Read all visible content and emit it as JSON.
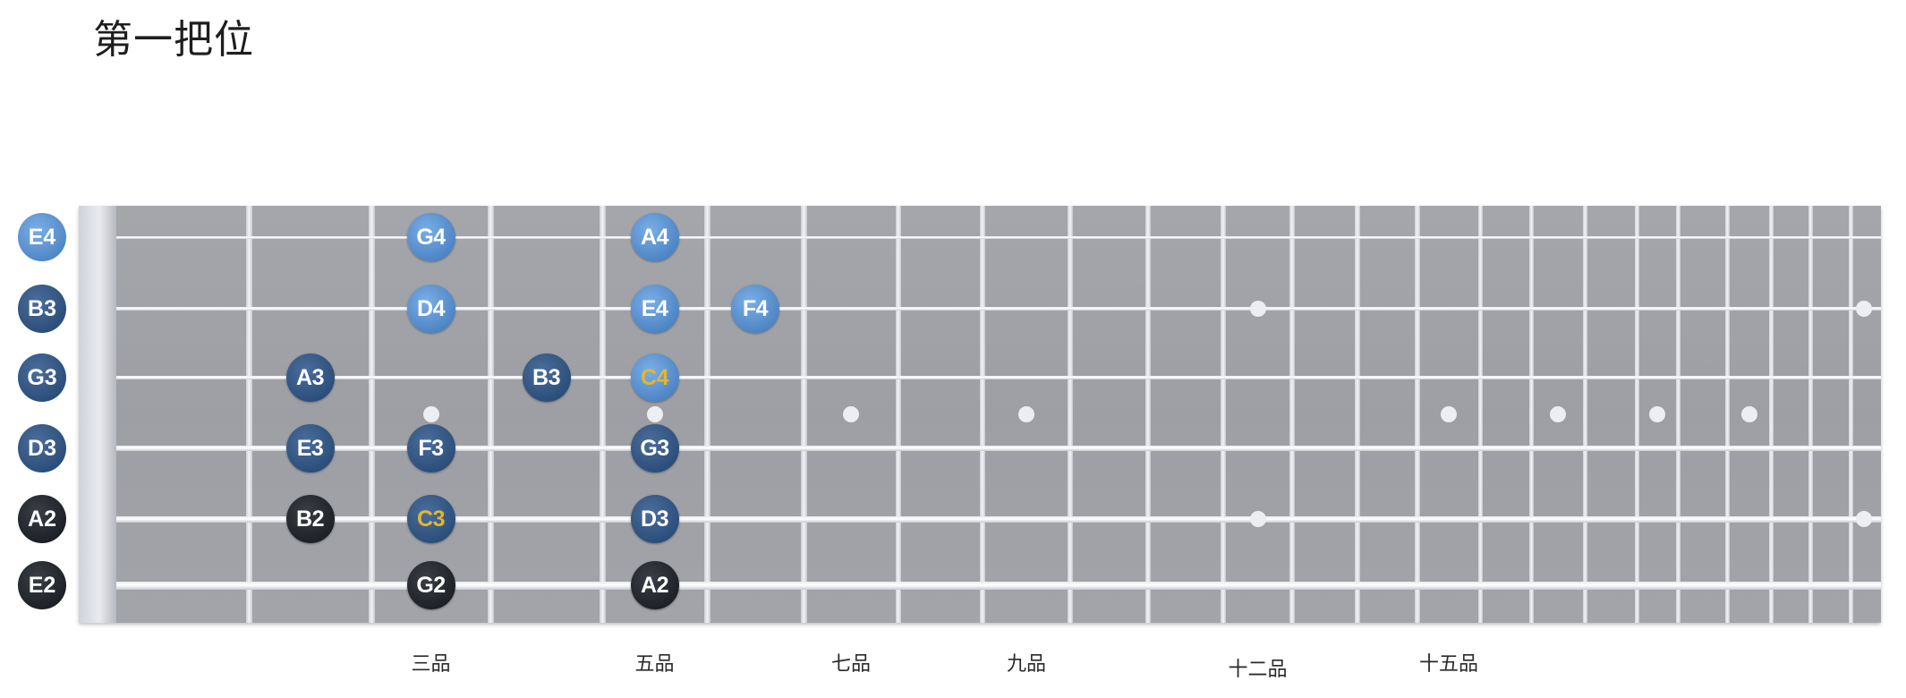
{
  "title": "第一把位",
  "open_strings": [
    {
      "label": "E4",
      "tone": "light"
    },
    {
      "label": "B3",
      "tone": "mid"
    },
    {
      "label": "G3",
      "tone": "mid"
    },
    {
      "label": "D3",
      "tone": "mid"
    },
    {
      "label": "A2",
      "tone": "dark"
    },
    {
      "label": "E2",
      "tone": "dark"
    }
  ],
  "notes": [
    {
      "label": "G4",
      "string": 1,
      "fret": 3,
      "tone": "light",
      "highlight": false
    },
    {
      "label": "A4",
      "string": 1,
      "fret": 5,
      "tone": "light",
      "highlight": false
    },
    {
      "label": "D4",
      "string": 2,
      "fret": 3,
      "tone": "light",
      "highlight": false
    },
    {
      "label": "E4",
      "string": 2,
      "fret": 5,
      "tone": "light",
      "highlight": false
    },
    {
      "label": "F4",
      "string": 2,
      "fret": 6,
      "tone": "light",
      "highlight": false
    },
    {
      "label": "A3",
      "string": 3,
      "fret": 2,
      "tone": "mid",
      "highlight": false
    },
    {
      "label": "B3",
      "string": 3,
      "fret": 4,
      "tone": "mid",
      "highlight": false
    },
    {
      "label": "C4",
      "string": 3,
      "fret": 5,
      "tone": "light",
      "highlight": true
    },
    {
      "label": "E3",
      "string": 4,
      "fret": 2,
      "tone": "mid",
      "highlight": false
    },
    {
      "label": "F3",
      "string": 4,
      "fret": 3,
      "tone": "mid",
      "highlight": false
    },
    {
      "label": "G3",
      "string": 4,
      "fret": 5,
      "tone": "mid",
      "highlight": false
    },
    {
      "label": "B2",
      "string": 5,
      "fret": 2,
      "tone": "dark",
      "highlight": false
    },
    {
      "label": "C3",
      "string": 5,
      "fret": 3,
      "tone": "mid",
      "highlight": true
    },
    {
      "label": "D3",
      "string": 5,
      "fret": 5,
      "tone": "mid",
      "highlight": false
    },
    {
      "label": "G2",
      "string": 6,
      "fret": 3,
      "tone": "dark",
      "highlight": false
    },
    {
      "label": "A2",
      "string": 6,
      "fret": 5,
      "tone": "dark",
      "highlight": false
    }
  ],
  "fret_markers": [
    {
      "fret": 3,
      "label": "三品"
    },
    {
      "fret": 5,
      "label": "五品"
    },
    {
      "fret": 7,
      "label": "七品"
    },
    {
      "fret": 9,
      "label": "九品"
    },
    {
      "fret": 12,
      "label": "十二品"
    },
    {
      "fret": 15,
      "label": "十五品"
    }
  ],
  "single_inlays": [
    3,
    5,
    7,
    9,
    15,
    17,
    19,
    21
  ],
  "double_inlays": [
    12,
    24
  ],
  "colors": {
    "light_note": "#4f86c6",
    "mid_note": "#2d4f7c",
    "dark_note": "#1f2227",
    "highlight_text": "#e3b62f",
    "board": "#a0a2a7"
  }
}
